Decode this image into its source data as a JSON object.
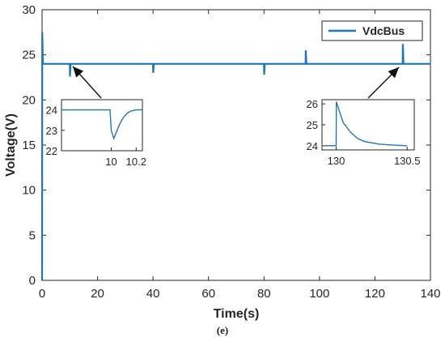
{
  "caption": "(e)",
  "chart_data": {
    "type": "line",
    "xlabel": "Time(s)",
    "ylabel": "Voltage(V)",
    "xlim": [
      0,
      140
    ],
    "ylim": [
      0,
      30
    ],
    "xticks": [
      "0",
      "20",
      "40",
      "60",
      "80",
      "100",
      "120",
      "140"
    ],
    "yticks": [
      "0",
      "5",
      "10",
      "15",
      "20",
      "25",
      "30"
    ],
    "grid": false,
    "legend": "top-right",
    "colors": {
      "series": "#1f77b4",
      "axis": "#262626"
    },
    "series": [
      {
        "name": "VdcBus",
        "x": [
          0,
          0.05,
          0.3,
          10,
          10.05,
          10.3,
          40,
          40.05,
          40.3,
          80,
          80.05,
          80.3,
          95,
          95.05,
          95.3,
          130,
          130.05,
          130.3,
          140
        ],
        "y": [
          0,
          27.5,
          24,
          24,
          22.6,
          24,
          24,
          23,
          24,
          24,
          22.8,
          24,
          24,
          25.5,
          24,
          24,
          26.2,
          24,
          24
        ]
      }
    ],
    "insets": [
      {
        "position": "lower-left",
        "xlim": [
          9.6,
          10.25
        ],
        "ylim": [
          22,
          24.5
        ],
        "xticks": [
          "10",
          "10.2"
        ],
        "yticks": [
          "22",
          "23",
          "24"
        ],
        "x": [
          9.6,
          9.99,
          10.0,
          10.02,
          10.04,
          10.06,
          10.08,
          10.1,
          10.13,
          10.16,
          10.2,
          10.25
        ],
        "y": [
          24,
          24,
          23,
          22.6,
          22.9,
          23.2,
          23.45,
          23.65,
          23.85,
          23.95,
          24.0,
          24.0
        ]
      },
      {
        "position": "lower-right",
        "xlim": [
          129.9,
          130.55
        ],
        "ylim": [
          23.8,
          26.2
        ],
        "xticks": [
          "130",
          "130.5"
        ],
        "yticks": [
          "24",
          "25",
          "26"
        ],
        "x": [
          129.9,
          130.0,
          130.001,
          130.02,
          130.05,
          130.1,
          130.15,
          130.2,
          130.3,
          130.4,
          130.5
        ],
        "y": [
          24,
          24,
          26.1,
          25.7,
          25.1,
          24.65,
          24.35,
          24.2,
          24.08,
          24.03,
          24.0
        ]
      }
    ]
  }
}
